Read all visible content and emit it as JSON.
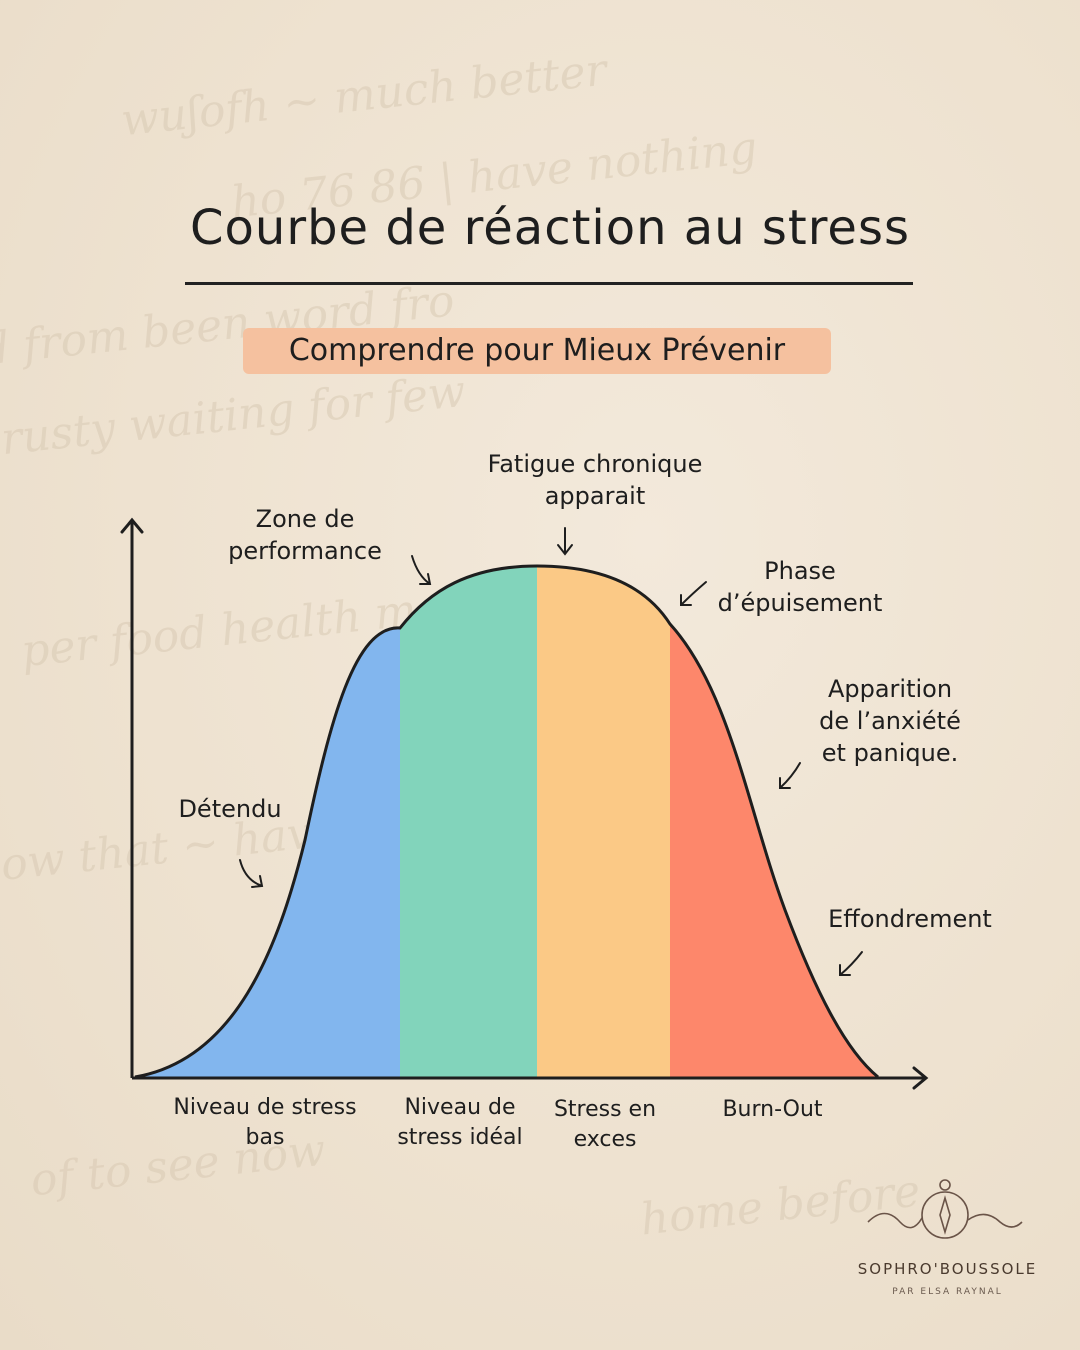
{
  "header": {
    "title": "Courbe de réaction au stress",
    "subtitle": "Comprendre pour Mieux Prévenir"
  },
  "zones": [
    {
      "name": "Niveau de stress bas",
      "line1": "Niveau de stress",
      "line2": "bas",
      "color": "#82b6ee"
    },
    {
      "name": "Niveau de stress idéal",
      "line1": "Niveau de",
      "line2": "stress idéal",
      "color": "#82d4bb"
    },
    {
      "name": "Stress en exces",
      "line1": "Stress en",
      "line2": "exces",
      "color": "#fbc986"
    },
    {
      "name": "Burn-Out",
      "line1": "Burn-Out",
      "line2": "",
      "color": "#fd876b"
    }
  ],
  "annotations": {
    "detendu": "Détendu",
    "zone_perf_1": "Zone de",
    "zone_perf_2": "performance",
    "fatigue_1": "Fatigue chronique",
    "fatigue_2": "apparait",
    "phase_1": "Phase",
    "phase_2": "d’épuisement",
    "apparition_1": "Apparition",
    "apparition_2": "de l’anxiété",
    "apparition_3": "et panique.",
    "effondrement": "Effondrement"
  },
  "logo": {
    "brand": "SOPHRO'BOUSSOLE",
    "byline": "PAR ELSA RAYNAL",
    "icon": "compass-icon"
  },
  "colors": {
    "background": "#efe3d2",
    "subtitle_highlight": "#f5c19f",
    "ink": "#1e1e1e"
  }
}
